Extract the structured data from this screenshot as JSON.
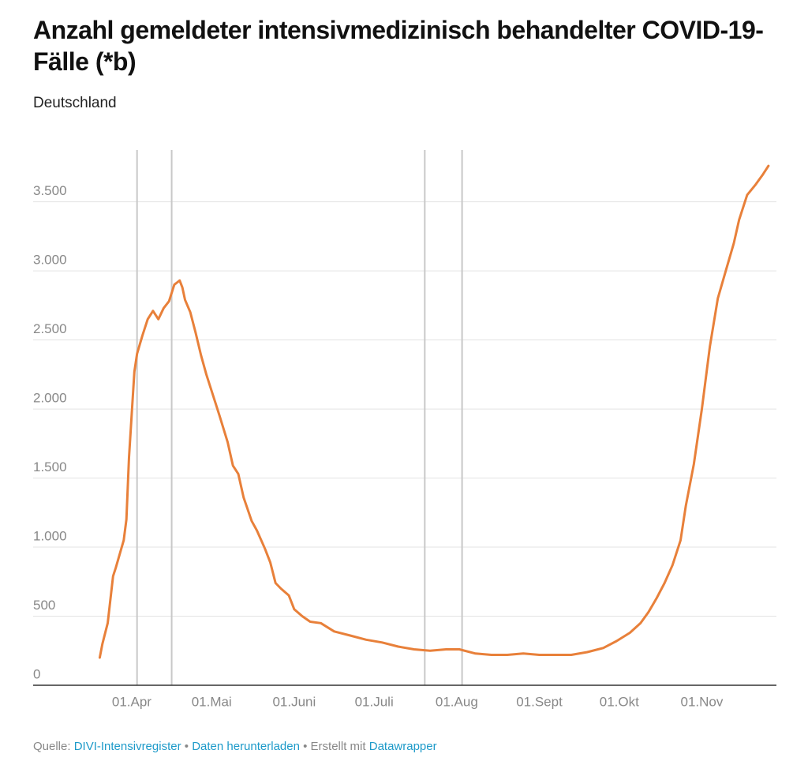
{
  "chart_data": {
    "type": "line",
    "title": "Anzahl gemeldeter intensivmedizinisch behandelter COVID-19-Fälle (*b)",
    "subtitle": "Deutschland",
    "x": [
      "20.03",
      "21.03",
      "23.03",
      "25.03",
      "26.03",
      "29.03",
      "30.03",
      "31.03",
      "02.04",
      "03.04",
      "05.04",
      "07.04",
      "09.04",
      "11.04",
      "13.04",
      "15.04",
      "17.04",
      "19.04",
      "20.04",
      "21.04",
      "23.04",
      "25.04",
      "27.04",
      "29.04",
      "02.05",
      "04.05",
      "07.05",
      "09.05",
      "11.05",
      "13.05",
      "16.05",
      "18.05",
      "21.05",
      "23.05",
      "25.05",
      "27.05",
      "30.05",
      "01.06",
      "04.06",
      "07.06",
      "11.06",
      "16.06",
      "22.06",
      "28.06",
      "04.07",
      "10.07",
      "16.07",
      "22.07",
      "28.07",
      "02.08",
      "08.08",
      "14.08",
      "20.08",
      "26.08",
      "01.09",
      "07.09",
      "13.09",
      "19.09",
      "25.09",
      "30.09",
      "05.10",
      "09.10",
      "12.10",
      "15.10",
      "18.10",
      "21.10",
      "24.10",
      "26.10",
      "29.10",
      "01.11",
      "04.11",
      "07.11",
      "10.11",
      "13.11",
      "15.11",
      "18.11",
      "21.11",
      "24.11",
      "26.11"
    ],
    "values": [
      200,
      300,
      450,
      790,
      850,
      1050,
      1200,
      1650,
      2270,
      2400,
      2530,
      2650,
      2710,
      2650,
      2730,
      2780,
      2900,
      2930,
      2880,
      2790,
      2700,
      2550,
      2390,
      2250,
      2070,
      1950,
      1760,
      1590,
      1530,
      1360,
      1190,
      1120,
      990,
      890,
      740,
      700,
      650,
      550,
      500,
      460,
      450,
      390,
      360,
      330,
      310,
      280,
      260,
      250,
      260,
      260,
      230,
      220,
      220,
      230,
      220,
      220,
      220,
      240,
      270,
      320,
      380,
      450,
      530,
      630,
      740,
      870,
      1050,
      1300,
      1600,
      2000,
      2450,
      2800,
      3000,
      3200,
      3370,
      3550,
      3620,
      3700,
      3760
    ],
    "color": "#e8803a",
    "xlim": [
      "24.02",
      "29.11"
    ],
    "xticks": [
      {
        "value": "01.04",
        "label": "01.Apr"
      },
      {
        "value": "01.05",
        "label": "01.Mai"
      },
      {
        "value": "01.06",
        "label": "01.Juni"
      },
      {
        "value": "01.07",
        "label": "01.Juli"
      },
      {
        "value": "01.08",
        "label": "01.Aug"
      },
      {
        "value": "01.09",
        "label": "01.Sept"
      },
      {
        "value": "01.10",
        "label": "01.Okt"
      },
      {
        "value": "01.11",
        "label": "01.Nov"
      }
    ],
    "ylim": [
      0,
      3875
    ],
    "yticks": [
      0,
      500,
      {
        "value": 1000,
        "label": "1.000"
      },
      {
        "value": 1500,
        "label": "1.500"
      },
      {
        "value": 2000,
        "label": "2.000"
      },
      {
        "value": 2500,
        "label": "2.500"
      },
      {
        "value": 3000,
        "label": "3.000"
      },
      {
        "value": 3500,
        "label": "3.500"
      }
    ],
    "grid": true,
    "reference_lines": [
      "03.04",
      "16.04",
      "20.07",
      "03.08"
    ],
    "footer": {
      "source_label": "Quelle:",
      "source": "DIVI-Intensivregister",
      "download": "Daten herunterladen",
      "credit": "Erstellt mit",
      "credit_link": "Datawrapper"
    }
  }
}
